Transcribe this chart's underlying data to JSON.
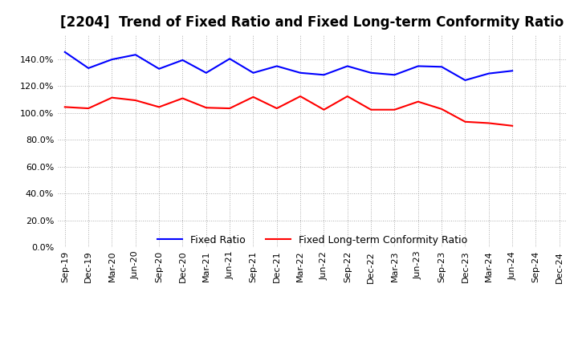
{
  "title": "[2204]  Trend of Fixed Ratio and Fixed Long-term Conformity Ratio",
  "labels": [
    "Sep-19",
    "Dec-19",
    "Mar-20",
    "Jun-20",
    "Sep-20",
    "Dec-20",
    "Mar-21",
    "Jun-21",
    "Sep-21",
    "Dec-21",
    "Mar-22",
    "Jun-22",
    "Sep-22",
    "Dec-22",
    "Mar-23",
    "Jun-23",
    "Sep-23",
    "Dec-23",
    "Mar-24",
    "Jun-24",
    "Sep-24",
    "Dec-24"
  ],
  "fixed_ratio": [
    145.5,
    133.5,
    140.0,
    143.5,
    133.0,
    139.5,
    130.0,
    140.5,
    130.0,
    135.0,
    130.0,
    128.5,
    135.0,
    130.0,
    128.5,
    135.0,
    134.5,
    124.5,
    129.5,
    131.5,
    null,
    null
  ],
  "fixed_lt_ratio": [
    104.5,
    103.5,
    111.5,
    109.5,
    104.5,
    111.0,
    104.0,
    103.5,
    112.0,
    103.5,
    112.5,
    102.5,
    112.5,
    102.5,
    102.5,
    108.5,
    103.0,
    93.5,
    92.5,
    90.5,
    null,
    null
  ],
  "blue_color": "#0000FF",
  "red_color": "#FF0000",
  "bg_color": "#FFFFFF",
  "grid_color": "#AAAAAA",
  "ylim": [
    0,
    150
  ],
  "yticks": [
    0,
    20,
    40,
    60,
    80,
    100,
    120,
    140
  ],
  "title_fontsize": 12,
  "legend_fontsize": 9,
  "tick_fontsize": 8
}
